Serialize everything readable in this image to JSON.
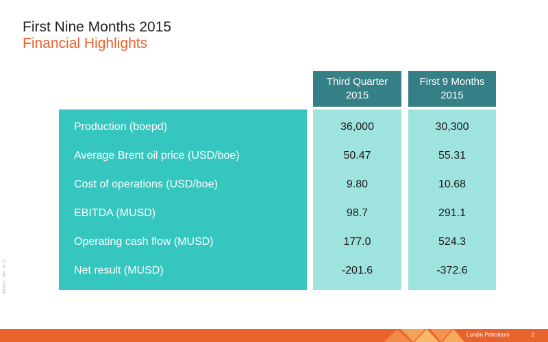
{
  "slide": {
    "title": "First Nine Months 2015",
    "subtitle": "Financial Highlights",
    "side_code": "IMF0580 · JAN · 07.13"
  },
  "table": {
    "columns": [
      {
        "line1": "Third Quarter",
        "line2": "2015"
      },
      {
        "line1": "First 9 Months",
        "line2": "2015"
      }
    ],
    "rows": [
      {
        "label": "Production (boepd)",
        "q3": "36,000",
        "m9": "30,300"
      },
      {
        "label": "Average Brent oil price (USD/boe)",
        "q3": "50.47",
        "m9": "55.31"
      },
      {
        "label": "Cost of operations (USD/boe)",
        "q3": "9.80",
        "m9": "10.68"
      },
      {
        "label": "EBITDA (MUSD)",
        "q3": "98.7",
        "m9": "291.1"
      },
      {
        "label": "Operating cash flow (MUSD)",
        "q3": "177.0",
        "m9": "524.3"
      },
      {
        "label": "Net result (MUSD)",
        "q3": "-201.6",
        "m9": "-372.6"
      }
    ]
  },
  "footer": {
    "brand": "Lundin Petroleum",
    "page_number": "2"
  },
  "colors": {
    "title": "#222222",
    "subtitle": "#e8622b",
    "header_bg": "#357f86",
    "labels_bg": "#35c6bf",
    "values_bg": "#9fe3df",
    "footer_bg": "#e8622b"
  }
}
